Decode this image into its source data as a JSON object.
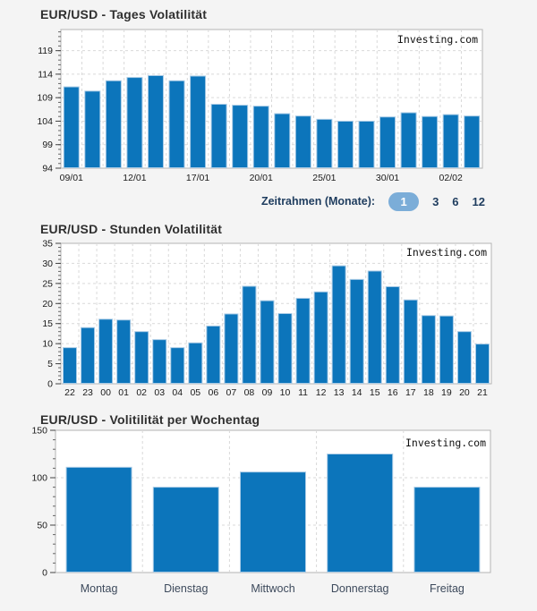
{
  "page": {
    "background": "#f4f4f4"
  },
  "timeframe_selector": {
    "label": "Zeitrahmen (Monate):",
    "options": [
      {
        "label": "1",
        "selected": true
      },
      {
        "label": "3",
        "selected": false
      },
      {
        "label": "6",
        "selected": false
      },
      {
        "label": "12",
        "selected": false
      }
    ],
    "selected_pill_color": "#7badd8",
    "text_color": "#1e3c5e"
  },
  "charts": [
    {
      "title": "EUR/USD - Tages Volatilität",
      "watermark": "Investing.com",
      "chart_data": {
        "type": "bar",
        "x_ticks": [
          {
            "index": 0,
            "label": "09/01"
          },
          {
            "index": 3,
            "label": "12/01"
          },
          {
            "index": 6,
            "label": "17/01"
          },
          {
            "index": 9,
            "label": "20/01"
          },
          {
            "index": 12,
            "label": "25/01"
          },
          {
            "index": 15,
            "label": "30/01"
          },
          {
            "index": 18,
            "label": "02/02"
          }
        ],
        "values": [
          111.3,
          110.4,
          112.6,
          113.3,
          113.7,
          112.6,
          113.6,
          107.6,
          107.4,
          107.2,
          105.6,
          105.1,
          104.4,
          104.0,
          104.0,
          104.9,
          105.8,
          105.0,
          105.4,
          105.1
        ],
        "ylim": [
          94,
          123.5
        ],
        "yticks": [
          94,
          99,
          104,
          109,
          114,
          119
        ],
        "grid": true,
        "legend": "none",
        "bar_color": "#0c75bb",
        "bar_edge_color": "#a9cbe6"
      }
    },
    {
      "title": "EUR/USD - Stunden Volatilität",
      "watermark": "Investing.com",
      "chart_data": {
        "type": "bar",
        "categories": [
          "22",
          "23",
          "00",
          "01",
          "02",
          "03",
          "04",
          "05",
          "06",
          "07",
          "08",
          "09",
          "10",
          "11",
          "12",
          "13",
          "14",
          "15",
          "16",
          "17",
          "18",
          "19",
          "20",
          "21"
        ],
        "values": [
          9.0,
          14.0,
          16.1,
          15.9,
          13.0,
          11.0,
          9.0,
          10.2,
          14.4,
          17.4,
          24.3,
          20.7,
          17.5,
          21.3,
          22.9,
          29.4,
          26.0,
          28.1,
          24.2,
          20.9,
          17.0,
          16.9,
          13.0,
          9.9
        ],
        "ylim": [
          0,
          35
        ],
        "yticks": [
          0,
          5,
          10,
          15,
          20,
          25,
          30,
          35
        ],
        "grid": true,
        "legend": "none",
        "bar_color": "#0c75bb",
        "bar_edge_color": "#a9cbe6"
      }
    },
    {
      "title": "EUR/USD - Volitilität per Wochentag",
      "watermark": "Investing.com",
      "chart_data": {
        "type": "bar",
        "categories": [
          "Montag",
          "Dienstag",
          "Mittwoch",
          "Donnerstag",
          "Freitag"
        ],
        "values": [
          111,
          90,
          106,
          125,
          90
        ],
        "ylim": [
          0,
          150
        ],
        "yticks": [
          0,
          50,
          100,
          150
        ],
        "grid": true,
        "legend": "none",
        "bar_color": "#0c75bb",
        "bar_edge_color": "#a9cbe6"
      }
    }
  ]
}
